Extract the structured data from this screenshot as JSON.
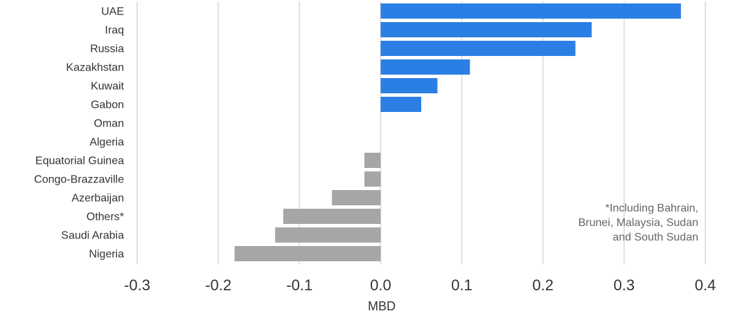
{
  "chart_data": {
    "type": "bar",
    "orientation": "horizontal",
    "categories": [
      "UAE",
      "Iraq",
      "Russia",
      "Kazakhstan",
      "Kuwait",
      "Gabon",
      "Oman",
      "Algeria",
      "Equatorial Guinea",
      "Congo-Brazzaville",
      "Azerbaijan",
      "Others*",
      "Saudi Arabia",
      "Nigeria"
    ],
    "values": [
      0.37,
      0.26,
      0.24,
      0.11,
      0.07,
      0.05,
      0.0,
      0.0,
      -0.02,
      -0.02,
      -0.06,
      -0.12,
      -0.13,
      -0.18
    ],
    "xlabel": "MBD",
    "xlim": [
      -0.3,
      0.4
    ],
    "xticks": [
      -0.3,
      -0.2,
      -0.1,
      0.0,
      0.1,
      0.2,
      0.3,
      0.4
    ],
    "tick_labels": [
      "-0.3",
      "-0.2",
      "-0.1",
      "0.0",
      "0.1",
      "0.2",
      "0.3",
      "0.4"
    ],
    "grid": "vertical",
    "annotation": [
      "*Including Bahrain,",
      "Brunei, Malaysia, Sudan",
      "and South Sudan"
    ],
    "colors": {
      "positive": "#2b7fe4",
      "negative": "#a6a6a6",
      "grid": "#d9d9d9",
      "text": "#333333",
      "note": "#666666"
    }
  }
}
